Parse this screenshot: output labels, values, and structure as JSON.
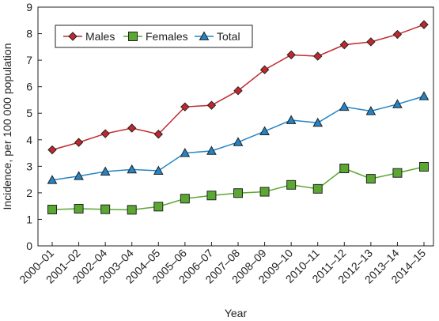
{
  "chart_data": {
    "type": "line",
    "title": "",
    "xlabel": "Year",
    "ylabel": "Incidence, per 100 000 population",
    "categories": [
      "2000–01",
      "2001–02",
      "2002–04",
      "2003–04",
      "2004–05",
      "2005–06",
      "2006–07",
      "2007–08",
      "2008–09",
      "2009–10",
      "2010–11",
      "2011–12",
      "2012–13",
      "2013–14",
      "2014–15"
    ],
    "ylim": [
      0,
      9
    ],
    "yticks": [
      0,
      1,
      2,
      3,
      4,
      5,
      6,
      7,
      8,
      9
    ],
    "grid": false,
    "legend_position": "top-left",
    "series": [
      {
        "name": "Males",
        "color": "#c0282d",
        "marker": "diamond",
        "values": [
          3.62,
          3.9,
          4.23,
          4.44,
          4.21,
          5.24,
          5.3,
          5.85,
          6.64,
          7.2,
          7.15,
          7.58,
          7.69,
          7.97,
          8.34
        ]
      },
      {
        "name": "Females",
        "color": "#5aa832",
        "marker": "square",
        "values": [
          1.37,
          1.4,
          1.38,
          1.36,
          1.48,
          1.78,
          1.9,
          1.99,
          2.04,
          2.3,
          2.15,
          2.92,
          2.53,
          2.75,
          2.98
        ]
      },
      {
        "name": "Total",
        "color": "#2484c6",
        "marker": "triangle",
        "values": [
          2.48,
          2.63,
          2.8,
          2.88,
          2.83,
          3.5,
          3.58,
          3.91,
          4.32,
          4.74,
          4.64,
          5.24,
          5.08,
          5.34,
          5.64
        ]
      }
    ]
  }
}
